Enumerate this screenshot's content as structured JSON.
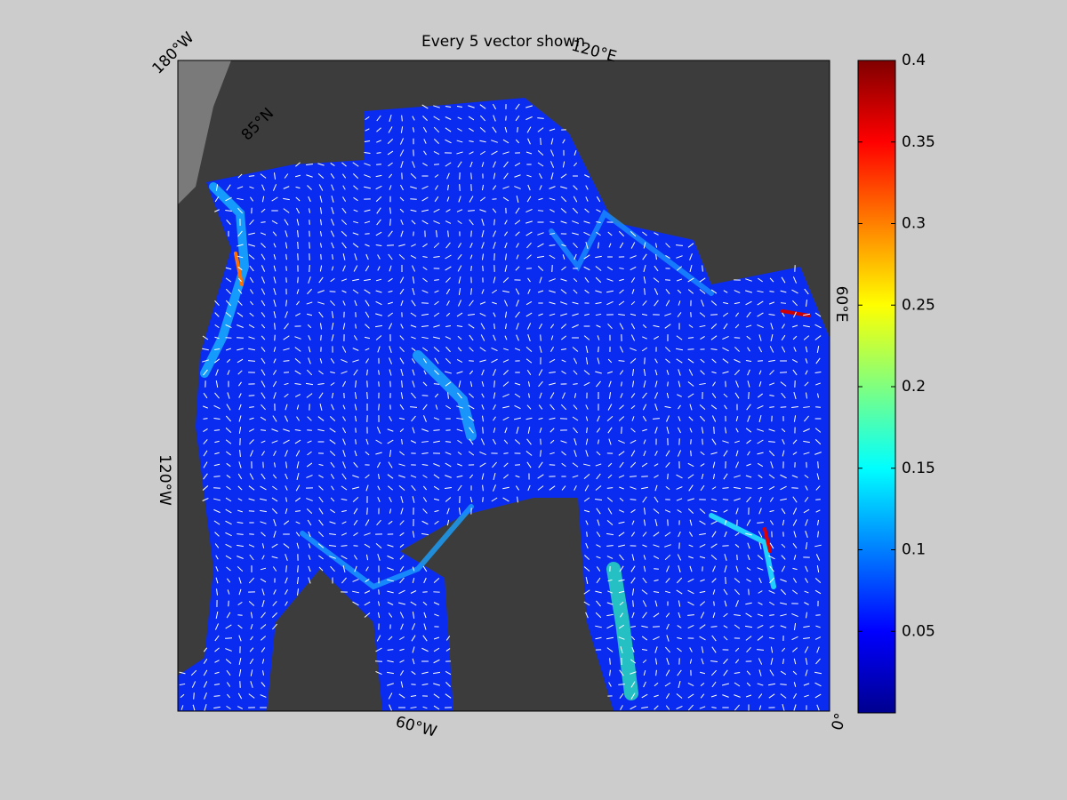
{
  "title": "Every 5 vector shown",
  "map_labels": [
    "180°W",
    "120°E",
    "85°N",
    "60°E",
    "120°W",
    "60°W",
    "0°"
  ],
  "colorbar": {
    "lim": [
      0,
      0.4
    ],
    "ticks": [
      0.05,
      0.1,
      0.15,
      0.2,
      0.25,
      0.3,
      0.35,
      0.4
    ]
  }
}
